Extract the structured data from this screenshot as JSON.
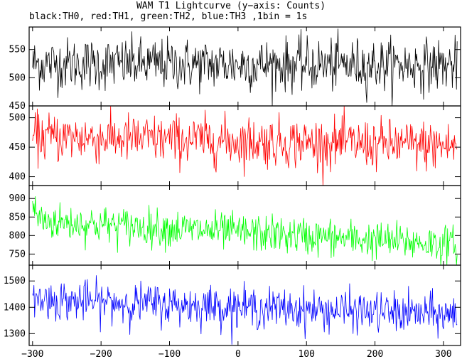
{
  "title": "WAM T1 Lightcurve (y−axis: Counts)",
  "subtitle": "black:TH0, red:TH1, green:TH2, blue:TH3 ,1bin = 1s",
  "chart_data": {
    "type": "line",
    "x_range": [
      -305,
      325
    ],
    "x_ticks": [
      -300,
      -200,
      -100,
      0,
      100,
      200,
      300
    ],
    "x_tick_labels": [
      "−300",
      "−200",
      "−100",
      "0",
      "100",
      "200",
      "300"
    ],
    "bin_seconds": 1,
    "panels": [
      {
        "name": "TH0",
        "color": "#000000",
        "ylim": [
          450,
          590
        ],
        "yticks": [
          450,
          500,
          550
        ],
        "x_start": -300,
        "x_end": 320,
        "mean_start": 525,
        "mean_end": 522,
        "noise": 23,
        "initial_drop": 0,
        "initial_drop_tau": 1
      },
      {
        "name": "TH1",
        "color": "#ff0000",
        "ylim": [
          385,
          520
        ],
        "yticks": [
          400,
          450,
          500
        ],
        "x_start": -300,
        "x_end": 320,
        "mean_start": 468,
        "mean_end": 452,
        "noise": 21,
        "initial_drop": 0,
        "initial_drop_tau": 1
      },
      {
        "name": "TH2",
        "color": "#00ff00",
        "ylim": [
          720,
          935
        ],
        "yticks": [
          750,
          800,
          850,
          900
        ],
        "x_start": -300,
        "x_end": 320,
        "mean_start": 840,
        "mean_end": 775,
        "noise": 25,
        "initial_drop": 45,
        "initial_drop_tau": 6
      },
      {
        "name": "TH3",
        "color": "#0000ff",
        "ylim": [
          1255,
          1560
        ],
        "yticks": [
          1300,
          1400,
          1500
        ],
        "x_start": -300,
        "x_end": 320,
        "mean_start": 1430,
        "mean_end": 1370,
        "noise": 38,
        "initial_drop": 0,
        "initial_drop_tau": 1
      }
    ]
  }
}
